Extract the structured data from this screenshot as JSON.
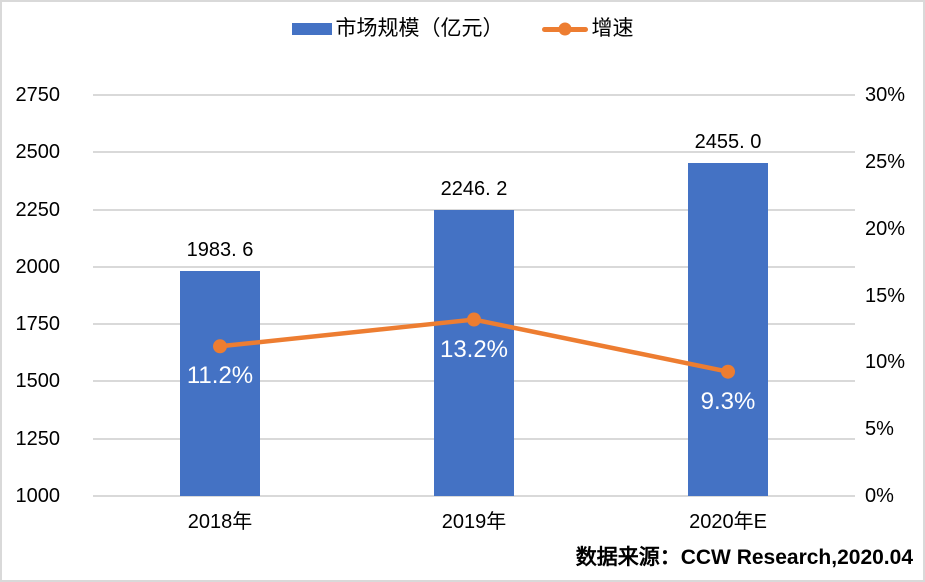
{
  "legend": {
    "items": [
      {
        "label": "市场规模（亿元）",
        "swatch": "bar-swatch"
      },
      {
        "label": "增速",
        "swatch": "line-marker-swatch"
      }
    ]
  },
  "source_note": "数据来源：CCW Research,2020.04",
  "colors": {
    "bar": "#4472c4",
    "line": "#ed7d31",
    "gridline": "#d9d9d9",
    "frame_border": "#d9d9d9",
    "background": "#ffffff",
    "text": "#000000",
    "bar_inner_label_text": "#ffffff"
  },
  "chart_data": {
    "type": "bar",
    "combo": "bar+line",
    "title": "",
    "categories": [
      "2018年",
      "2019年",
      "2020年E"
    ],
    "series": [
      {
        "name": "市场规模（亿元）",
        "type": "bar",
        "axis": "left",
        "values": [
          1983.6,
          2246.2,
          2455.0
        ],
        "value_labels": [
          "1983. 6",
          "2246. 2",
          "2455. 0"
        ]
      },
      {
        "name": "增速",
        "type": "line",
        "axis": "right",
        "values": [
          11.2,
          13.2,
          9.3
        ],
        "value_labels": [
          "11.2%",
          "13.2%",
          "9.3%"
        ]
      }
    ],
    "left_axis": {
      "min": 1000,
      "max": 2750,
      "step": 250,
      "tick_labels": [
        "2750",
        "2500",
        "2250",
        "2000",
        "1750",
        "1500",
        "1250",
        "1000"
      ]
    },
    "right_axis": {
      "min": 0,
      "max": 30,
      "step": 5,
      "tick_labels": [
        "30%",
        "25%",
        "20%",
        "15%",
        "10%",
        "5%",
        "0%"
      ]
    },
    "grid": true,
    "legend_position": "top"
  }
}
